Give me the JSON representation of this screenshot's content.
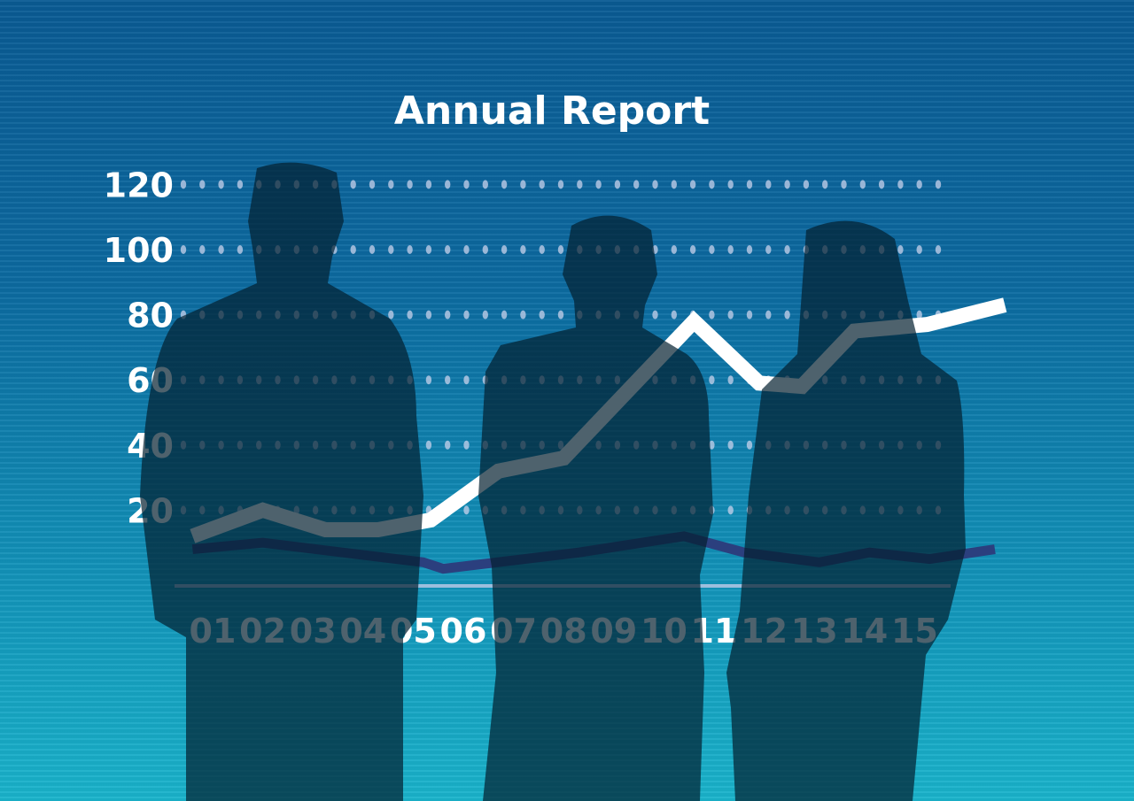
{
  "chart_data": {
    "type": "line",
    "title": "Annual Report",
    "xlabel": "",
    "ylabel": "",
    "x_ticks": [
      "01",
      "02",
      "03",
      "04",
      "05",
      "06",
      "07",
      "08",
      "09",
      "10",
      "11",
      "12",
      "13",
      "14",
      "15"
    ],
    "y_ticks": [
      20,
      40,
      60,
      80,
      100,
      120
    ],
    "ylim": [
      0,
      120
    ],
    "xlim": [
      0.6,
      16.8
    ],
    "grid": "dotted-horizontal",
    "series": [
      {
        "color": "#ffffff",
        "points": [
          [
            0.6,
            12
          ],
          [
            2,
            20
          ],
          [
            3.25,
            14
          ],
          [
            4.3,
            14
          ],
          [
            5.35,
            17
          ],
          [
            6.7,
            32
          ],
          [
            8,
            36
          ],
          [
            10.6,
            78
          ],
          [
            11.9,
            59
          ],
          [
            12.75,
            58
          ],
          [
            13.8,
            75
          ],
          [
            15.25,
            77
          ],
          [
            16.8,
            83
          ]
        ]
      },
      {
        "color": "#2b3f7e",
        "points": [
          [
            0.6,
            8
          ],
          [
            2,
            10
          ],
          [
            5.2,
            4
          ],
          [
            5.6,
            2
          ],
          [
            8.3,
            7
          ],
          [
            10.4,
            12
          ],
          [
            11.6,
            7
          ],
          [
            13.1,
            4
          ],
          [
            14.1,
            7
          ],
          [
            15.3,
            5
          ],
          [
            16.6,
            8
          ]
        ]
      }
    ]
  },
  "colors": {
    "background_top": "#0a5b94",
    "background_bottom": "#1ab4cc",
    "silhouette": "#03202f"
  }
}
